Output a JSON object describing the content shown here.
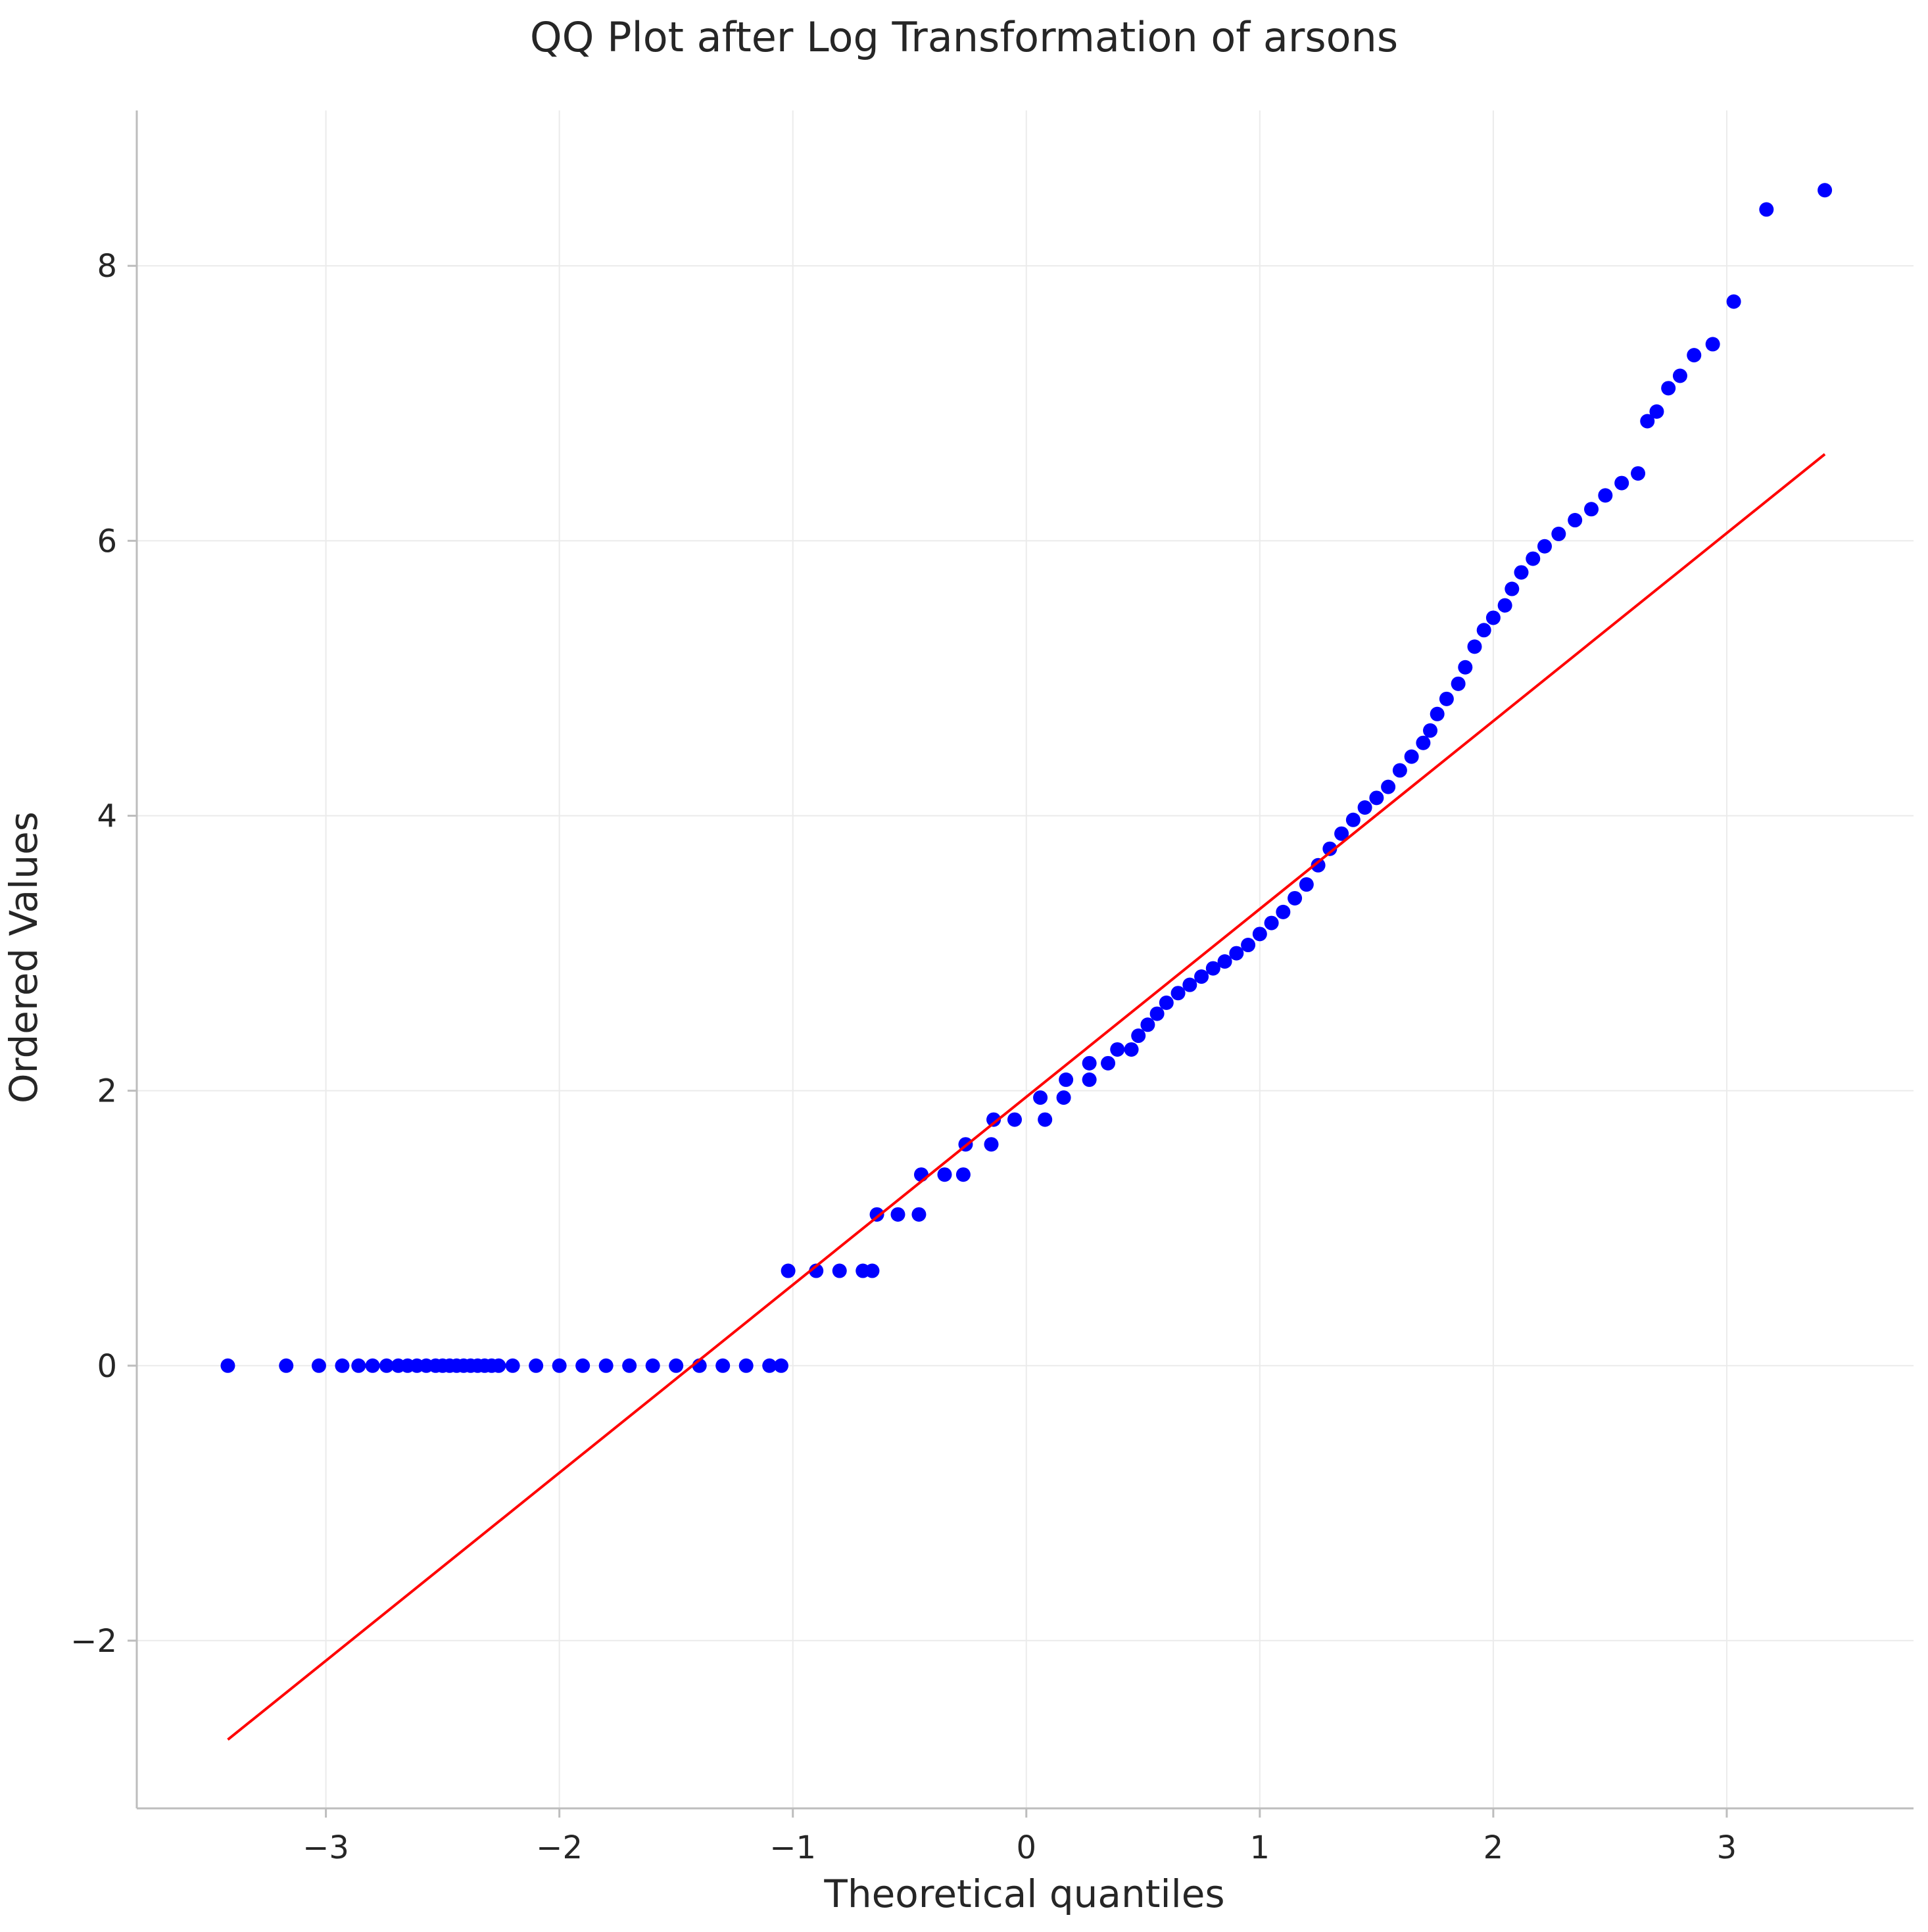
{
  "chart_data": {
    "type": "scatter",
    "title": "QQ Plot after Log Transformation of arsons",
    "xlabel": "Theoretical quantiles",
    "ylabel": "Ordered Values",
    "xlim": [
      -3.81,
      3.8
    ],
    "ylim": [
      -3.22,
      9.13
    ],
    "x_ticks": [
      -3,
      -2,
      -1,
      0,
      1,
      2,
      3
    ],
    "y_ticks": [
      -2,
      0,
      2,
      4,
      6,
      8
    ],
    "x_tick_labels": [
      "−3",
      "−2",
      "−1",
      "0",
      "1",
      "2",
      "3"
    ],
    "y_tick_labels": [
      "−2",
      "0",
      "2",
      "4",
      "6",
      "8"
    ],
    "grid": true,
    "colors": {
      "points": "#0000ff",
      "fit_line": "#ff0000",
      "grid": "#ebebeb",
      "axis": "#bdbdbd",
      "text": "#262626"
    },
    "series": [
      {
        "kind": "points",
        "values": [
          [
            -3.42,
            0.0
          ],
          [
            -3.17,
            0.0
          ],
          [
            -3.03,
            0.0
          ],
          [
            -2.93,
            0.0
          ],
          [
            -2.86,
            0.0
          ],
          [
            -2.8,
            0.0
          ],
          [
            -2.74,
            0.0
          ],
          [
            -2.69,
            0.0
          ],
          [
            -2.65,
            0.0
          ],
          [
            -2.61,
            0.0
          ],
          [
            -2.57,
            0.0
          ],
          [
            -2.53,
            0.0
          ],
          [
            -2.5,
            0.0
          ],
          [
            -2.47,
            0.0
          ],
          [
            -2.44,
            0.0
          ],
          [
            -2.41,
            0.0
          ],
          [
            -2.38,
            0.0
          ],
          [
            -2.35,
            0.0
          ],
          [
            -2.32,
            0.0
          ],
          [
            -2.29,
            0.0
          ],
          [
            -2.26,
            0.0
          ],
          [
            -2.2,
            0.0
          ],
          [
            -2.1,
            0.0
          ],
          [
            -2.0,
            0.0
          ],
          [
            -1.9,
            0.0
          ],
          [
            -1.8,
            0.0
          ],
          [
            -1.7,
            0.0
          ],
          [
            -1.6,
            0.0
          ],
          [
            -1.5,
            0.0
          ],
          [
            -1.4,
            0.0
          ],
          [
            -1.3,
            0.0
          ],
          [
            -1.2,
            0.0
          ],
          [
            -1.1,
            0.0
          ],
          [
            -1.05,
            0.0
          ],
          [
            -1.02,
            0.69
          ],
          [
            -0.9,
            0.69
          ],
          [
            -0.8,
            0.69
          ],
          [
            -0.7,
            0.69
          ],
          [
            -0.66,
            0.69
          ],
          [
            -0.64,
            1.1
          ],
          [
            -0.55,
            1.1
          ],
          [
            -0.46,
            1.1
          ],
          [
            -0.45,
            1.39
          ],
          [
            -0.35,
            1.39
          ],
          [
            -0.27,
            1.39
          ],
          [
            -0.26,
            1.61
          ],
          [
            -0.15,
            1.61
          ],
          [
            -0.14,
            1.79
          ],
          [
            -0.05,
            1.79
          ],
          [
            0.08,
            1.79
          ],
          [
            0.06,
            1.95
          ],
          [
            0.16,
            1.95
          ],
          [
            0.17,
            2.08
          ],
          [
            0.27,
            2.08
          ],
          [
            0.27,
            2.2
          ],
          [
            0.35,
            2.2
          ],
          [
            0.39,
            2.3
          ],
          [
            0.45,
            2.3
          ],
          [
            0.48,
            2.4
          ],
          [
            0.52,
            2.48
          ],
          [
            0.56,
            2.56
          ],
          [
            0.6,
            2.64
          ],
          [
            0.65,
            2.71
          ],
          [
            0.7,
            2.77
          ],
          [
            0.75,
            2.83
          ],
          [
            0.8,
            2.89
          ],
          [
            0.85,
            2.94
          ],
          [
            0.9,
            3.0
          ],
          [
            0.95,
            3.06
          ],
          [
            1.0,
            3.14
          ],
          [
            1.05,
            3.22
          ],
          [
            1.1,
            3.3
          ],
          [
            1.15,
            3.4
          ],
          [
            1.2,
            3.5
          ],
          [
            1.25,
            3.64
          ],
          [
            1.3,
            3.76
          ],
          [
            1.35,
            3.87
          ],
          [
            1.4,
            3.97
          ],
          [
            1.45,
            4.06
          ],
          [
            1.5,
            4.13
          ],
          [
            1.55,
            4.21
          ],
          [
            1.6,
            4.33
          ],
          [
            1.65,
            4.43
          ],
          [
            1.7,
            4.53
          ],
          [
            1.73,
            4.62
          ],
          [
            1.76,
            4.74
          ],
          [
            1.8,
            4.85
          ],
          [
            1.85,
            4.96
          ],
          [
            1.88,
            5.08
          ],
          [
            1.92,
            5.23
          ],
          [
            1.96,
            5.35
          ],
          [
            2.0,
            5.44
          ],
          [
            2.05,
            5.53
          ],
          [
            2.08,
            5.65
          ],
          [
            2.12,
            5.77
          ],
          [
            2.17,
            5.87
          ],
          [
            2.22,
            5.96
          ],
          [
            2.28,
            6.05
          ],
          [
            2.35,
            6.15
          ],
          [
            2.42,
            6.23
          ],
          [
            2.48,
            6.33
          ],
          [
            2.55,
            6.42
          ],
          [
            2.62,
            6.49
          ],
          [
            2.66,
            6.87
          ],
          [
            2.7,
            6.94
          ],
          [
            2.75,
            7.11
          ],
          [
            2.8,
            7.2
          ],
          [
            2.86,
            7.35
          ],
          [
            2.94,
            7.43
          ],
          [
            3.03,
            7.74
          ],
          [
            3.17,
            8.41
          ],
          [
            3.42,
            8.55
          ]
        ]
      },
      {
        "kind": "fit-line",
        "x": [
          -3.42,
          3.42
        ],
        "y": [
          -2.72,
          6.63
        ]
      }
    ]
  }
}
